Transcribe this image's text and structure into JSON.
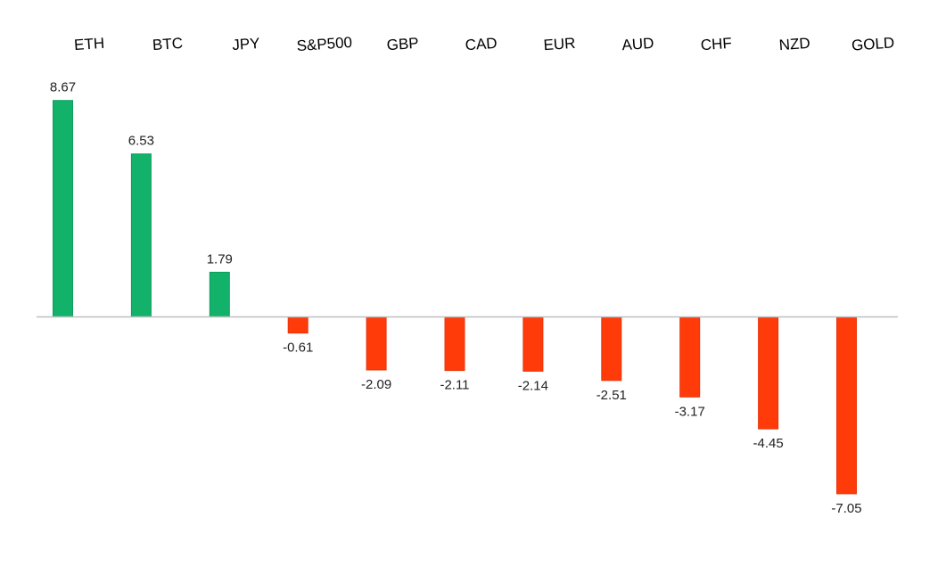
{
  "chart_data": {
    "type": "bar",
    "categories": [
      "ETH",
      "BTC",
      "JPY",
      "S&P500",
      "GBP",
      "CAD",
      "EUR",
      "AUD",
      "CHF",
      "NZD",
      "GOLD"
    ],
    "values": [
      8.67,
      6.53,
      1.79,
      -0.61,
      -2.09,
      -2.11,
      -2.14,
      -2.51,
      -3.17,
      -4.45,
      -7.05
    ],
    "value_labels": [
      "8.67",
      "6.53",
      "1.79",
      "-0.61",
      "-2.09",
      "-2.11",
      "-2.14",
      "-2.51",
      "-3.17",
      "-4.45",
      "-7.05"
    ],
    "title": "",
    "xlabel": "",
    "ylabel": "",
    "ylim": [
      -7.05,
      8.67
    ],
    "category_labels_position": "top",
    "grid": false,
    "legend": "none",
    "colors": {
      "positive": "#13b26a",
      "positive_edge": "#0f9c5c",
      "negative": "#ff3b0a",
      "negative_edge": "#e8340a",
      "axis": "#bfbfbf",
      "background": "#ffffff"
    }
  }
}
